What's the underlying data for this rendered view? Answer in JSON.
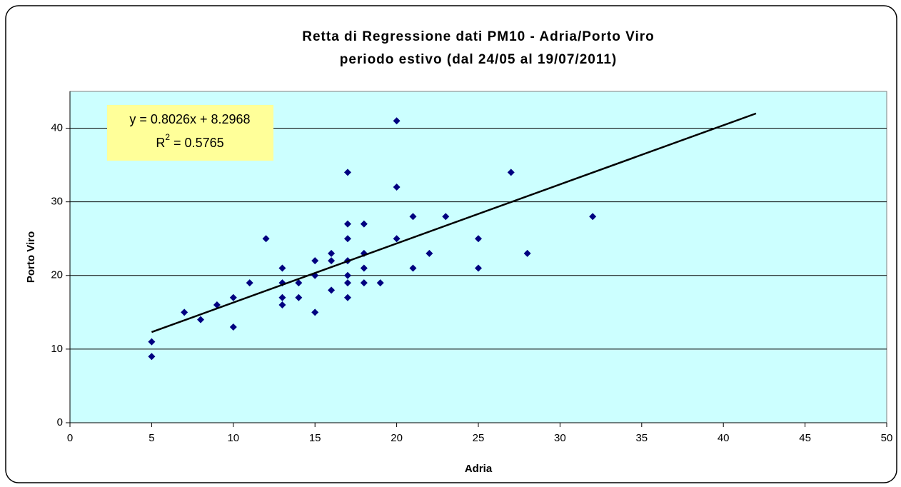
{
  "chart_data": {
    "type": "scatter",
    "title": [
      "Retta di Regressione dati PM10 - Adria/Porto Viro",
      "periodo estivo (dal 24/05 al 19/07/2011)"
    ],
    "xlabel": "Adria",
    "ylabel": "Porto Viro",
    "x": [
      5,
      5,
      7,
      8,
      9,
      10,
      10,
      11,
      12,
      13,
      13,
      13,
      13,
      14,
      14,
      15,
      15,
      15,
      16,
      16,
      16,
      17,
      17,
      17,
      17,
      17,
      17,
      17,
      18,
      18,
      18,
      18,
      19,
      20,
      20,
      20,
      21,
      21,
      22,
      23,
      25,
      25,
      27,
      28,
      32
    ],
    "values": [
      11,
      9,
      15,
      14,
      16,
      17,
      13,
      19,
      25,
      21,
      19,
      17,
      16,
      19,
      17,
      22,
      20,
      15,
      23,
      22,
      18,
      34,
      27,
      25,
      22,
      20,
      19,
      17,
      27,
      23,
      21,
      19,
      19,
      41,
      32,
      25,
      28,
      21,
      23,
      28,
      25,
      21,
      34,
      23,
      28
    ],
    "color": "#000080",
    "xlim": [
      0,
      50
    ],
    "xticks": [
      0,
      5,
      10,
      15,
      20,
      25,
      30,
      35,
      40,
      45,
      50
    ],
    "ylim": [
      0,
      45
    ],
    "yticks": [
      0,
      10,
      20,
      30,
      40
    ],
    "grid": true,
    "plot_background": "#ccffff",
    "trendline": {
      "slope": 0.8026,
      "intercept": 8.2968,
      "x_range": [
        5,
        42
      ],
      "color": "#000000",
      "equation": "y = 0.8026x + 8.2968",
      "r2_label": {
        "base": "R",
        "sup": "2",
        "rest": " = 0.5765"
      },
      "box_color": "#ffff99"
    }
  }
}
